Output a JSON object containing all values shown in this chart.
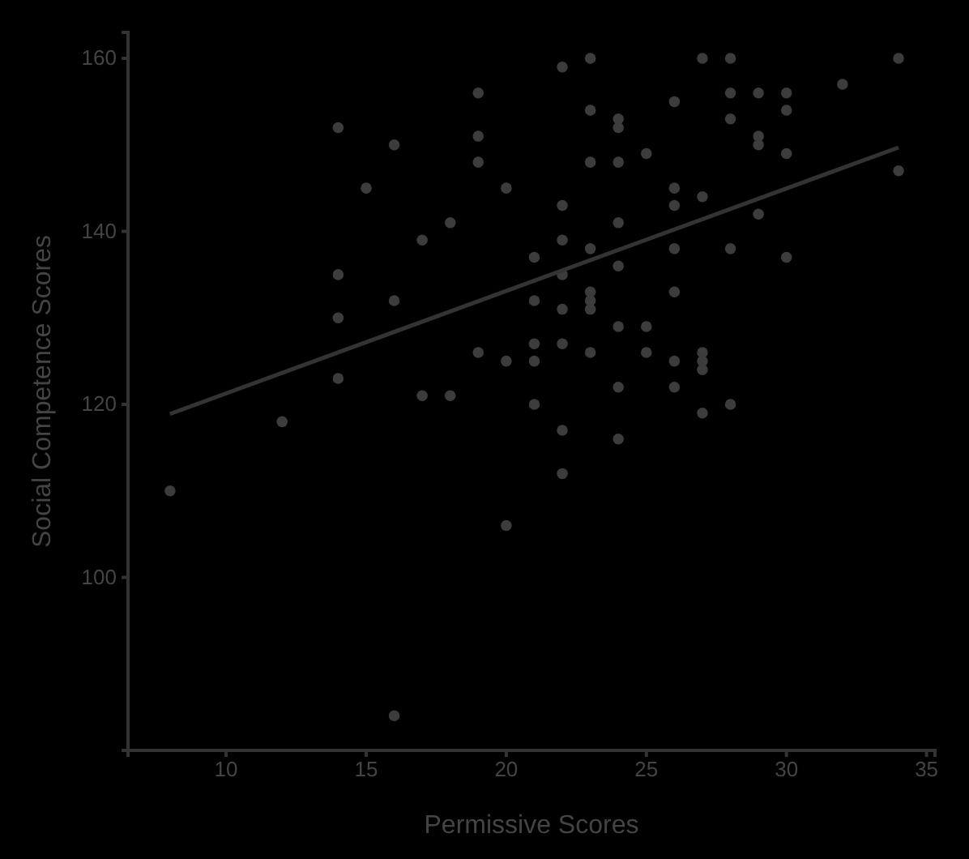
{
  "chart_data": {
    "type": "scatter",
    "xlabel": "Permissive Scores",
    "ylabel": "Social Competence Scores",
    "xlim": [
      6.5,
      35.3
    ],
    "ylim": [
      80,
      163
    ],
    "xticks": [
      10,
      15,
      20,
      25,
      30,
      35
    ],
    "yticks": [
      100,
      120,
      140,
      160
    ],
    "grid": false,
    "series": [
      {
        "marker": "circle",
        "color": "#3c3c3c",
        "x": [
          8,
          12,
          14,
          14,
          14,
          14,
          15,
          16,
          16,
          16,
          17,
          17,
          18,
          18,
          19,
          19,
          19,
          19,
          20,
          20,
          20,
          21,
          21,
          21,
          21,
          21,
          22,
          22,
          22,
          22,
          22,
          22,
          22,
          22,
          23,
          23,
          23,
          23,
          23,
          23,
          23,
          23,
          24,
          24,
          24,
          24,
          24,
          24,
          24,
          24,
          25,
          25,
          25,
          26,
          26,
          26,
          26,
          26,
          26,
          26,
          27,
          27,
          27,
          27,
          27,
          27,
          28,
          28,
          28,
          28,
          28,
          29,
          29,
          29,
          29,
          30,
          30,
          30,
          30,
          32,
          34,
          34
        ],
        "values": [
          110,
          118,
          152,
          135,
          130,
          123,
          145,
          150,
          132,
          84,
          139,
          121,
          141,
          121,
          156,
          151,
          148,
          126,
          145,
          125,
          106,
          137,
          132,
          127,
          125,
          120,
          159,
          143,
          139,
          135,
          131,
          127,
          117,
          112,
          160,
          154,
          148,
          138,
          133,
          132,
          131,
          126,
          153,
          152,
          148,
          141,
          136,
          129,
          122,
          116,
          149,
          129,
          126,
          155,
          145,
          143,
          138,
          133,
          125,
          122,
          160,
          144,
          126,
          125,
          124,
          119,
          160,
          156,
          153,
          138,
          120,
          156,
          151,
          150,
          142,
          156,
          154,
          149,
          137,
          157,
          160,
          147
        ]
      },
      {
        "type": "line",
        "color": "#333333",
        "line_style": "solid",
        "x": [
          8,
          34
        ],
        "values": [
          118.9,
          149.7
        ]
      }
    ]
  }
}
